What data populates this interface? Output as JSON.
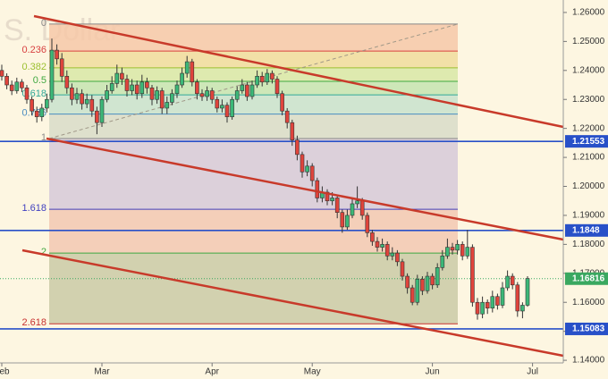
{
  "chart_data": {
    "type": "candlestick",
    "watermark": "S. Dollar",
    "categories": [
      "Feb",
      null,
      null,
      null,
      null,
      null,
      null,
      null,
      null,
      null,
      null,
      null,
      null,
      null,
      null,
      null,
      null,
      null,
      null,
      null,
      "Mar",
      null,
      null,
      null,
      null,
      null,
      null,
      null,
      null,
      null,
      null,
      null,
      null,
      null,
      null,
      null,
      null,
      null,
      null,
      null,
      null,
      null,
      "Apr",
      null,
      null,
      null,
      null,
      null,
      null,
      null,
      null,
      null,
      null,
      null,
      null,
      null,
      null,
      null,
      null,
      null,
      null,
      null,
      "May",
      null,
      null,
      null,
      null,
      null,
      null,
      null,
      null,
      null,
      null,
      null,
      null,
      null,
      null,
      null,
      null,
      null,
      null,
      null,
      null,
      null,
      null,
      null,
      "Jun",
      null,
      null,
      null,
      null,
      null,
      null,
      null,
      null,
      null,
      null,
      null,
      null,
      null,
      null,
      null,
      null,
      null,
      null,
      null,
      "Jul"
    ],
    "open": [
      1.24,
      1.238,
      1.235,
      1.233,
      1.236,
      1.234,
      1.23,
      1.226,
      1.224,
      1.227,
      1.23,
      1.247,
      1.244,
      1.238,
      1.234,
      1.23,
      1.232,
      1.2285,
      1.23,
      1.226,
      1.222,
      1.23,
      1.233,
      1.2355,
      1.239,
      1.237,
      1.233,
      1.235,
      1.232,
      1.236,
      1.234,
      1.23,
      1.233,
      1.227,
      1.229,
      1.232,
      1.235,
      1.239,
      1.243,
      1.236,
      1.232,
      1.231,
      1.233,
      1.23,
      1.227,
      1.228,
      1.224,
      1.23,
      1.233,
      1.235,
      1.231,
      1.235,
      1.238,
      1.236,
      1.239,
      1.237,
      1.232,
      1.226,
      1.222,
      1.216,
      1.211,
      1.205,
      1.207,
      1.202,
      1.196,
      1.198,
      1.195,
      1.196,
      1.191,
      1.186,
      1.19,
      1.194,
      1.195,
      1.19,
      1.184,
      1.181,
      1.179,
      1.18,
      1.176,
      1.177,
      1.174,
      1.169,
      1.165,
      1.16,
      1.168,
      1.164,
      1.169,
      1.166,
      1.172,
      1.176,
      1.179,
      1.178,
      1.18,
      1.176,
      1.179,
      1.16,
      1.156,
      1.16,
      1.158,
      1.162,
      1.159,
      1.165,
      1.169,
      1.166,
      1.157,
      1.159,
      null
    ],
    "high": [
      1.242,
      1.239,
      1.2365,
      1.2375,
      1.237,
      1.235,
      1.231,
      1.2275,
      1.2285,
      1.232,
      1.251,
      1.249,
      1.246,
      1.24,
      1.2355,
      1.234,
      1.2335,
      1.232,
      1.2315,
      1.2275,
      1.231,
      1.235,
      1.238,
      1.242,
      1.241,
      1.2385,
      1.237,
      1.2365,
      1.2385,
      1.2375,
      1.235,
      1.2345,
      1.234,
      1.231,
      1.2335,
      1.2365,
      1.241,
      1.245,
      1.244,
      1.237,
      1.2335,
      1.2345,
      1.234,
      1.231,
      1.23,
      1.229,
      1.231,
      1.2345,
      1.237,
      1.236,
      1.2365,
      1.24,
      1.2395,
      1.2405,
      1.24,
      1.238,
      1.233,
      1.227,
      1.223,
      1.2175,
      1.212,
      1.209,
      1.208,
      1.203,
      1.2,
      1.199,
      1.198,
      1.197,
      1.192,
      1.192,
      1.196,
      1.2,
      1.196,
      1.191,
      1.185,
      1.1825,
      1.182,
      1.181,
      1.179,
      1.178,
      1.175,
      1.17,
      1.166,
      1.1695,
      1.169,
      1.1705,
      1.17,
      1.1735,
      1.178,
      1.182,
      1.1805,
      1.1815,
      1.181,
      1.185,
      1.18,
      1.1615,
      1.162,
      1.161,
      1.164,
      1.163,
      1.167,
      1.171,
      1.17,
      1.167,
      1.16,
      1.169,
      null
    ],
    "low": [
      1.2365,
      1.2335,
      1.2315,
      1.232,
      1.2325,
      1.2285,
      1.2245,
      1.222,
      1.2225,
      1.2255,
      1.229,
      1.242,
      1.236,
      1.232,
      1.228,
      1.2285,
      1.2265,
      1.227,
      1.224,
      1.218,
      1.2205,
      1.229,
      1.232,
      1.234,
      1.235,
      1.231,
      1.2315,
      1.23,
      1.2305,
      1.232,
      1.228,
      1.2285,
      1.225,
      1.225,
      1.228,
      1.2305,
      1.234,
      1.2375,
      1.2345,
      1.23,
      1.2295,
      1.2295,
      1.2285,
      1.2255,
      1.2255,
      1.222,
      1.223,
      1.229,
      1.232,
      1.2295,
      1.23,
      1.234,
      1.2345,
      1.235,
      1.2355,
      1.2305,
      1.2245,
      1.22,
      1.214,
      1.209,
      1.203,
      1.2035,
      1.2,
      1.1945,
      1.1945,
      1.1935,
      1.1935,
      1.189,
      1.184,
      1.185,
      1.189,
      1.1925,
      1.1885,
      1.1825,
      1.1795,
      1.1775,
      1.1775,
      1.1745,
      1.1745,
      1.1725,
      1.1675,
      1.163,
      1.159,
      1.159,
      1.1625,
      1.163,
      1.1645,
      1.165,
      1.171,
      1.175,
      1.1765,
      1.1765,
      1.1745,
      1.175,
      1.1585,
      1.154,
      1.1545,
      1.156,
      1.1565,
      1.1575,
      1.158,
      1.164,
      1.1645,
      1.155,
      1.1545,
      1.1585,
      null
    ],
    "close": [
      1.238,
      1.235,
      1.233,
      1.236,
      1.234,
      1.23,
      1.226,
      1.224,
      1.227,
      1.23,
      1.247,
      1.244,
      1.238,
      1.234,
      1.23,
      1.232,
      1.2285,
      1.23,
      1.226,
      1.222,
      1.23,
      1.233,
      1.2355,
      1.239,
      1.237,
      1.233,
      1.235,
      1.232,
      1.236,
      1.234,
      1.23,
      1.233,
      1.227,
      1.229,
      1.232,
      1.235,
      1.239,
      1.243,
      1.236,
      1.232,
      1.231,
      1.233,
      1.23,
      1.227,
      1.228,
      1.224,
      1.23,
      1.233,
      1.235,
      1.231,
      1.235,
      1.238,
      1.236,
      1.239,
      1.237,
      1.232,
      1.226,
      1.222,
      1.216,
      1.211,
      1.205,
      1.207,
      1.202,
      1.196,
      1.198,
      1.195,
      1.196,
      1.191,
      1.186,
      1.19,
      1.194,
      1.195,
      1.19,
      1.184,
      1.181,
      1.179,
      1.18,
      1.176,
      1.177,
      1.174,
      1.169,
      1.165,
      1.16,
      1.168,
      1.164,
      1.169,
      1.166,
      1.172,
      1.176,
      1.179,
      1.178,
      1.18,
      1.176,
      1.179,
      1.16,
      1.156,
      1.16,
      1.158,
      1.162,
      1.159,
      1.165,
      1.169,
      1.166,
      1.157,
      1.159,
      1.1682,
      null
    ],
    "up_color": "#3cb878",
    "down_color": "#e0443c",
    "ylim": [
      1.1391,
      1.2643
    ],
    "yticks": [
      {
        "value": 1.26,
        "label": "1.26000"
      },
      {
        "value": 1.25,
        "label": "1.25000"
      },
      {
        "value": 1.24,
        "label": "1.24000"
      },
      {
        "value": 1.23,
        "label": "1.23000"
      },
      {
        "value": 1.22,
        "label": "1.22000"
      },
      {
        "value": 1.21,
        "label": "1.21000"
      },
      {
        "value": 1.2,
        "label": "1.20000"
      },
      {
        "value": 1.19,
        "label": "1.19000"
      },
      {
        "value": 1.18,
        "label": "1.18000"
      },
      {
        "value": 1.17,
        "label": "1.17000"
      },
      {
        "value": 1.16,
        "label": "1.16000"
      },
      {
        "value": 1.15,
        "label": "1.15000"
      },
      {
        "value": 1.14,
        "label": "1.14000"
      }
    ],
    "grid": false,
    "hlines": [
      {
        "value": 1.21553,
        "color": "#2850c8",
        "style": "solid"
      },
      {
        "value": 1.1848,
        "color": "#2850c8",
        "style": "solid"
      },
      {
        "value": 1.16816,
        "color": "#3aa860",
        "style": "dotted"
      },
      {
        "value": 1.15083,
        "color": "#2850c8",
        "style": "solid"
      }
    ],
    "fib": {
      "start": 1.256,
      "end": 1.2165,
      "levels": [
        0,
        0.236,
        0.382,
        0.5,
        0.618,
        0.786,
        1,
        1.618,
        2,
        2.618
      ],
      "line_colors": [
        "#888888",
        "#d84040",
        "#9cc030",
        "#40a840",
        "#30a898",
        "#4a8cc0",
        "#888888",
        "#4040c0",
        "#40a840",
        "#c83030"
      ],
      "zone_colors": [
        "#f6c8a8",
        "#f0dc9c",
        "#d8e8a6",
        "#c6e4b0",
        "#c8e2cc",
        "#d8dcc8",
        "#d6c9d8",
        "#f2c8b2",
        "#caca a6"
      ]
    }
  }
}
